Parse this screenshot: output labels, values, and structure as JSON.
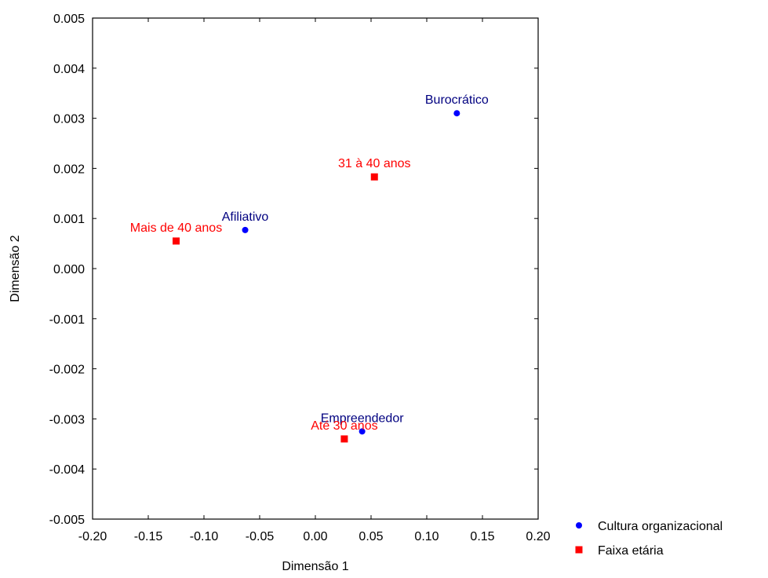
{
  "chart_data": {
    "type": "scatter",
    "title": "",
    "xlabel": "Dimensão 1",
    "ylabel": "Dimensão 2",
    "xlim": [
      -0.2,
      0.2
    ],
    "ylim": [
      -0.005,
      0.005
    ],
    "xticks": [
      "-0.20",
      "-0.15",
      "-0.10",
      "-0.05",
      "0.00",
      "0.05",
      "0.10",
      "0.15",
      "0.20"
    ],
    "yticks": [
      "0.005",
      "0.004",
      "0.003",
      "0.002",
      "0.001",
      "0.000",
      "-0.001",
      "-0.002",
      "-0.003",
      "-0.004",
      "-0.005"
    ],
    "grid": false,
    "legend_position": "bottom-right",
    "series": [
      {
        "name": "Cultura organizacional",
        "marker": "circle",
        "color": "#0000ff",
        "label_color": "#000080",
        "points": [
          {
            "label": "Burocrático",
            "x": 0.127,
            "y": 0.0031
          },
          {
            "label": "Afiliativo",
            "x": -0.063,
            "y": 0.00077
          },
          {
            "label": "Empreendedor",
            "x": 0.042,
            "y": -0.00325
          }
        ]
      },
      {
        "name": "Faixa etária",
        "marker": "square",
        "color": "#ff0000",
        "label_color": "#ff0000",
        "points": [
          {
            "label": "31 à 40 anos",
            "x": 0.053,
            "y": 0.00183
          },
          {
            "label": "Mais de 40 anos",
            "x": -0.125,
            "y": 0.00055
          },
          {
            "label": "Até 30 anos",
            "x": 0.026,
            "y": -0.0034
          }
        ]
      }
    ]
  }
}
